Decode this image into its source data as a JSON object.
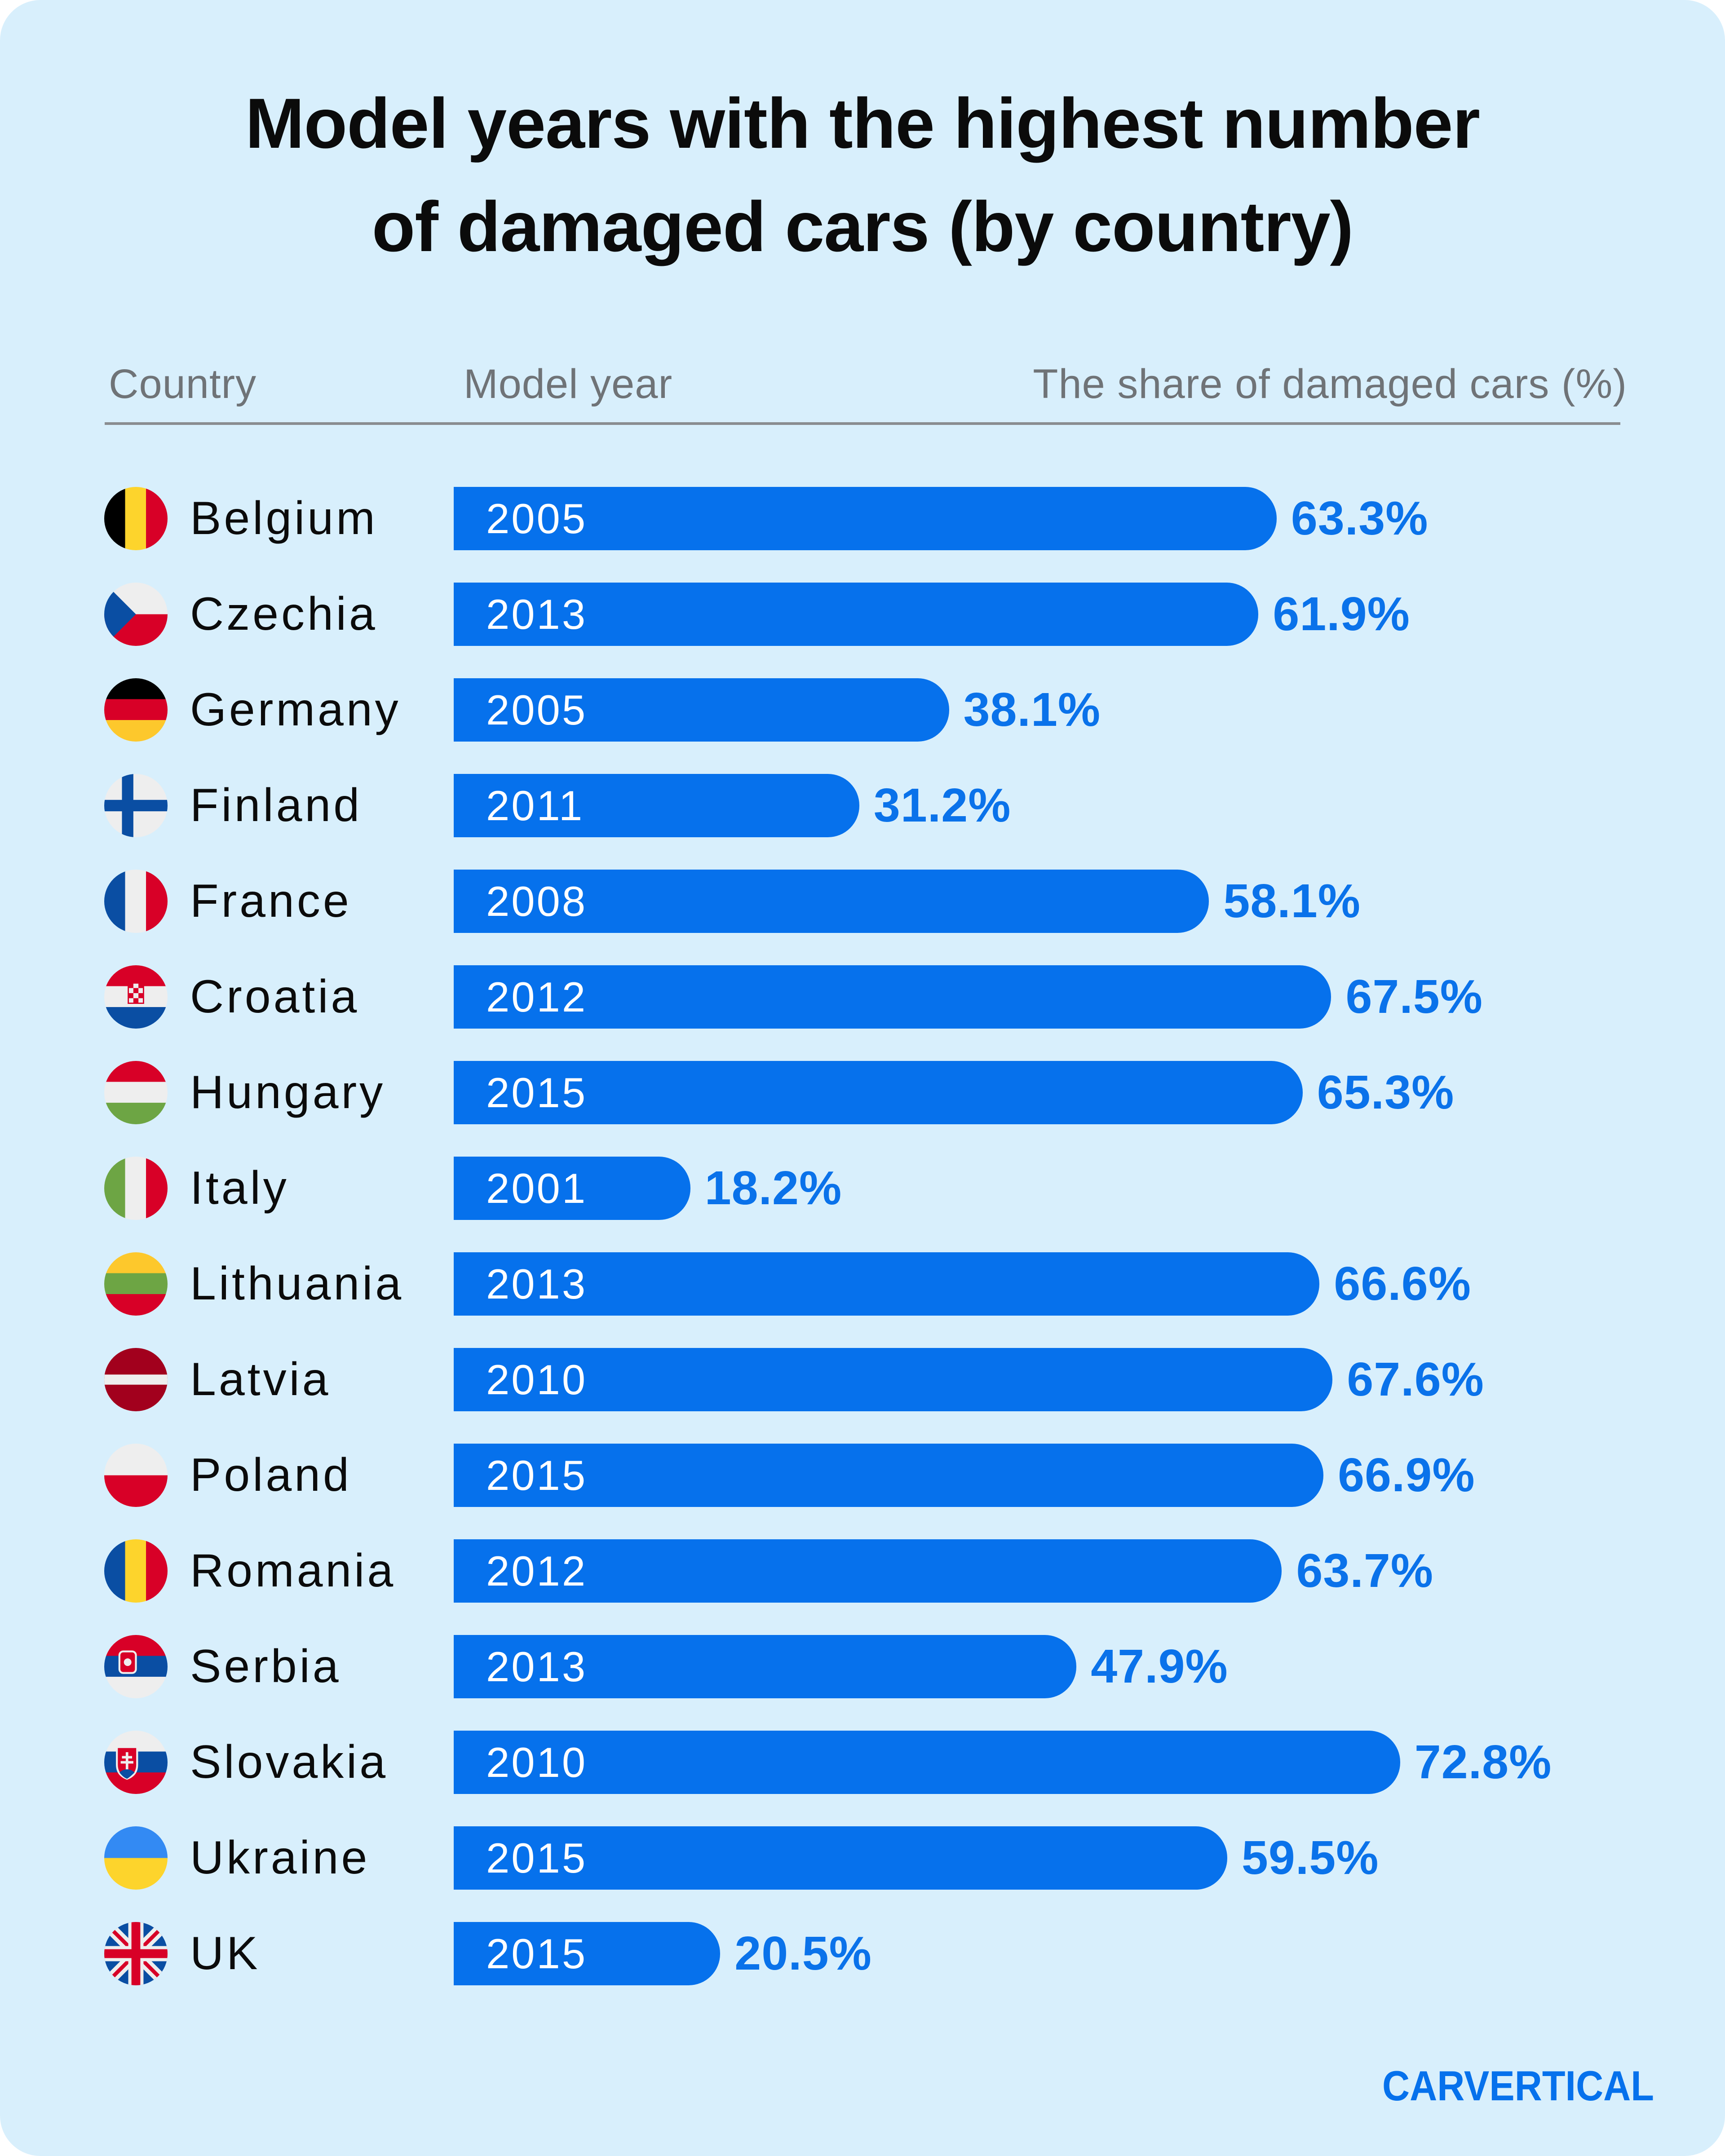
{
  "title_lines": [
    "Model years with the highest number",
    "of damaged cars (by country)"
  ],
  "headers": {
    "country": "Country",
    "model_year": "Model year",
    "share": "The share of damaged cars (%)"
  },
  "brand": {
    "logo_text": "CARVERTICAL",
    "color": "#0671ec"
  },
  "colors": {
    "background": "#d8effc",
    "bar": "#0671ec",
    "value_label": "#0a72ea"
  },
  "chart_data": {
    "type": "bar",
    "orientation": "horizontal",
    "xlim": [
      0,
      100
    ],
    "grid": false,
    "categories": [
      "Belgium",
      "Czechia",
      "Germany",
      "Finland",
      "France",
      "Croatia",
      "Hungary",
      "Italy",
      "Lithuania",
      "Latvia",
      "Poland",
      "Romania",
      "Serbia",
      "Slovakia",
      "Ukraine",
      "UK"
    ],
    "model_years": [
      "2005",
      "2013",
      "2005",
      "2011",
      "2008",
      "2012",
      "2015",
      "2001",
      "2013",
      "2010",
      "2015",
      "2012",
      "2013",
      "2010",
      "2015",
      "2015"
    ],
    "values": [
      63.3,
      61.9,
      38.1,
      31.2,
      58.1,
      67.5,
      65.3,
      18.2,
      66.6,
      67.6,
      66.9,
      63.7,
      47.9,
      72.8,
      59.5,
      20.5
    ],
    "value_labels": [
      "63.3%",
      "61.9%",
      "38.1%",
      "31.2%",
      "58.1%",
      "67.5%",
      "65.3%",
      "18.2%",
      "66.6%",
      "67.6%",
      "66.9%",
      "63.7%",
      "47.9%",
      "72.8%",
      "59.5%",
      "20.5%"
    ],
    "flag_icons": [
      "flag-belgium-icon",
      "flag-czechia-icon",
      "flag-germany-icon",
      "flag-finland-icon",
      "flag-france-icon",
      "flag-croatia-icon",
      "flag-hungary-icon",
      "flag-italy-icon",
      "flag-lithuania-icon",
      "flag-latvia-icon",
      "flag-poland-icon",
      "flag-romania-icon",
      "flag-serbia-icon",
      "flag-slovakia-icon",
      "flag-ukraine-icon",
      "flag-uk-icon"
    ]
  }
}
